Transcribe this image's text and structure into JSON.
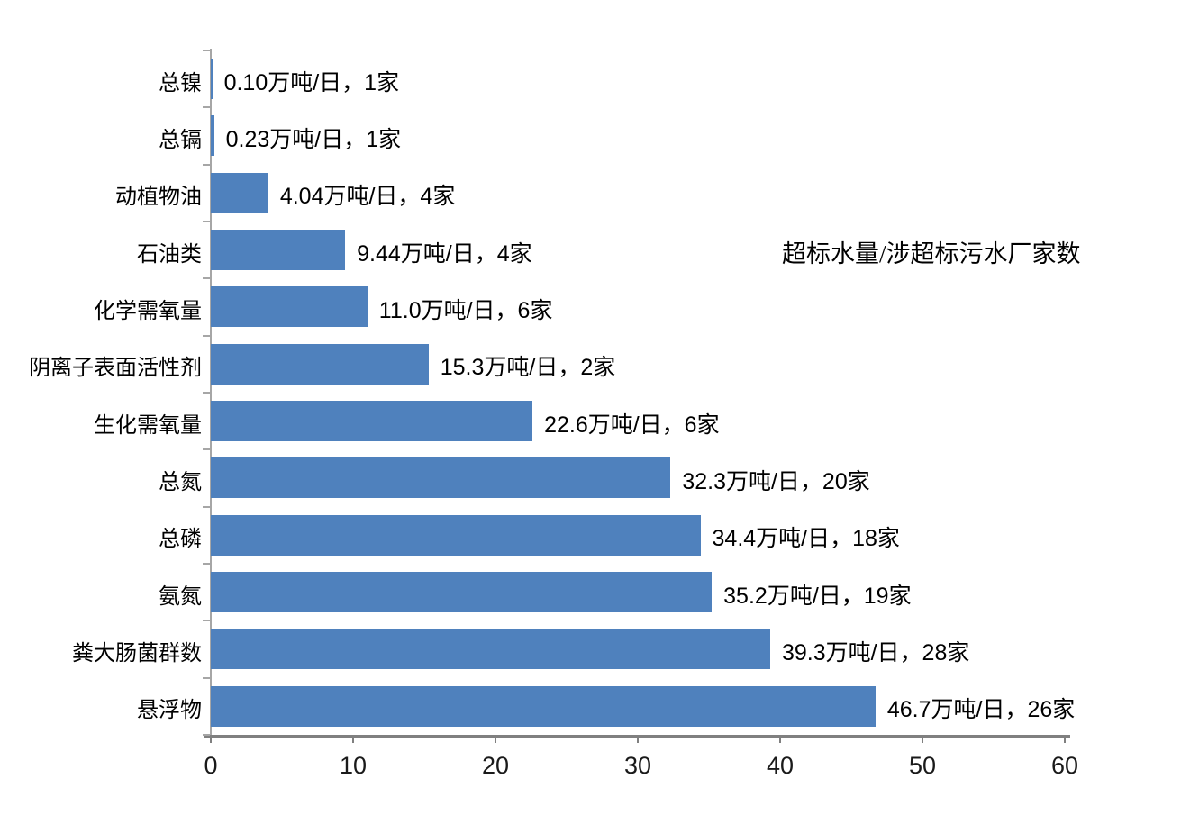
{
  "chart_data": {
    "type": "bar",
    "orientation": "horizontal",
    "title": "超标水量/涉超标污水厂家数",
    "categories": [
      "总镍",
      "总镉",
      "动植物油",
      "石油类",
      "化学需氧量",
      "阴离子表面活性剂",
      "生化需氧量",
      "总氮",
      "总磷",
      "氨氮",
      "粪大肠菌群数",
      "悬浮物"
    ],
    "values": [
      0.1,
      0.23,
      4.04,
      9.44,
      11.0,
      15.3,
      22.6,
      32.3,
      34.4,
      35.2,
      39.3,
      46.7
    ],
    "plant_counts": [
      1,
      1,
      4,
      4,
      6,
      2,
      6,
      20,
      18,
      19,
      28,
      26
    ],
    "data_labels": [
      "0.10万吨/日，1家",
      "0.23万吨/日，1家",
      "4.04万吨/日，4家",
      "9.44万吨/日，4家",
      "11.0万吨/日，6家",
      "15.3万吨/日，2家",
      "22.6万吨/日，6家",
      "32.3万吨/日，20家",
      "34.4万吨/日，18家",
      "35.2万吨/日，19家",
      "39.3万吨/日，28家",
      "46.7万吨/日，26家"
    ],
    "ylabel": "",
    "xlabel": "",
    "x_ticks": [
      "0",
      "10",
      "20",
      "30",
      "40",
      "50",
      "60"
    ],
    "xlim": [
      0,
      60
    ],
    "grid": false,
    "legend": false,
    "bar_color": "#4f81bd",
    "x_axis_color": "#808080",
    "y_axis_color": "#a6a6a6",
    "text_color": "#000000",
    "background_color": "#ffffff"
  }
}
